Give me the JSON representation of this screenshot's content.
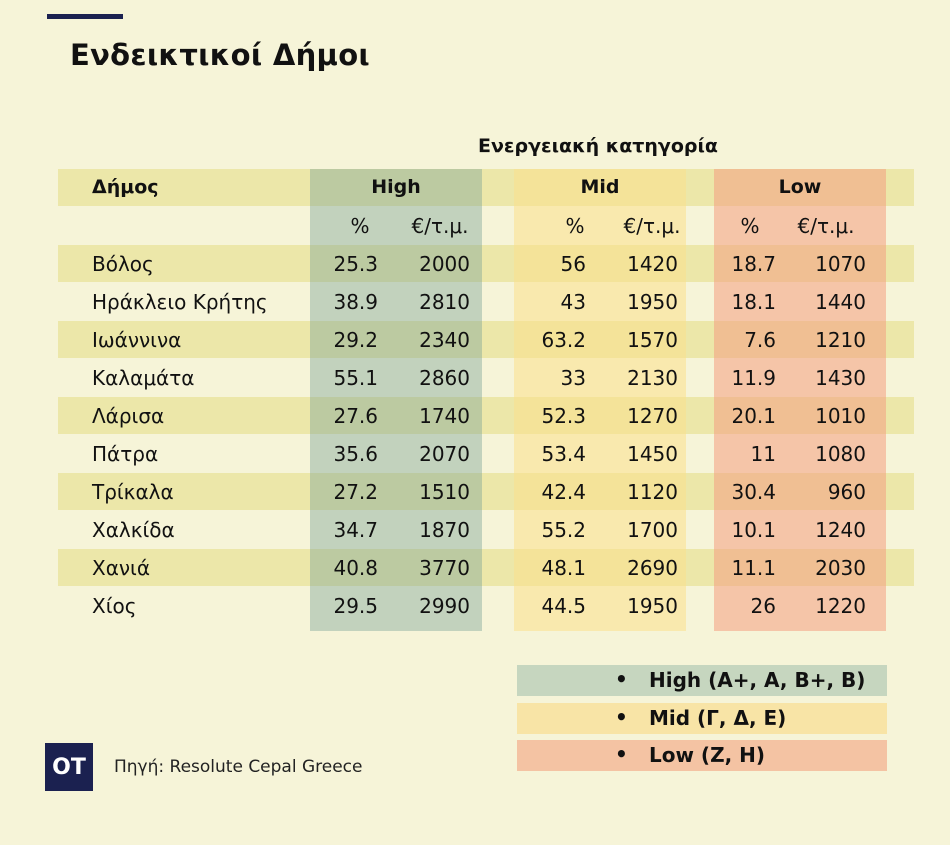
{
  "page": {
    "title": "Ενδεικτικοί Δήμοι",
    "group_header": "Ενεργειακή κατηγορία",
    "source": "Πηγή: Resolute Cepal Greece",
    "logo": "OT"
  },
  "colors": {
    "background": "#f6f4d8",
    "row_band": "#ece7a9",
    "high": "#c6d6bf",
    "mid": "#f8e4a6",
    "low": "#f4c3a3",
    "brand": "#1b2150"
  },
  "table": {
    "columns": {
      "municipality": "Δήμος",
      "high": "High",
      "mid": "Mid",
      "low": "Low",
      "pct": "%",
      "price": "€/τ.μ."
    },
    "rows": [
      {
        "name": "Βόλος",
        "high_pct": "25.3",
        "high_price": "2000",
        "mid_pct": "56",
        "mid_price": "1420",
        "low_pct": "18.7",
        "low_price": "1070"
      },
      {
        "name": "Ηράκλειο Κρήτης",
        "high_pct": "38.9",
        "high_price": "2810",
        "mid_pct": "43",
        "mid_price": "1950",
        "low_pct": "18.1",
        "low_price": "1440"
      },
      {
        "name": "Ιωάννινα",
        "high_pct": "29.2",
        "high_price": "2340",
        "mid_pct": "63.2",
        "mid_price": "1570",
        "low_pct": "7.6",
        "low_price": "1210"
      },
      {
        "name": "Καλαμάτα",
        "high_pct": "55.1",
        "high_price": "2860",
        "mid_pct": "33",
        "mid_price": "2130",
        "low_pct": "11.9",
        "low_price": "1430"
      },
      {
        "name": "Λάρισα",
        "high_pct": "27.6",
        "high_price": "1740",
        "mid_pct": "52.3",
        "mid_price": "1270",
        "low_pct": "20.1",
        "low_price": "1010"
      },
      {
        "name": "Πάτρα",
        "high_pct": "35.6",
        "high_price": "2070",
        "mid_pct": "53.4",
        "mid_price": "1450",
        "low_pct": "11",
        "low_price": "1080"
      },
      {
        "name": "Τρίκαλα",
        "high_pct": "27.2",
        "high_price": "1510",
        "mid_pct": "42.4",
        "mid_price": "1120",
        "low_pct": "30.4",
        "low_price": "960"
      },
      {
        "name": "Χαλκίδα",
        "high_pct": "34.7",
        "high_price": "1870",
        "mid_pct": "55.2",
        "mid_price": "1700",
        "low_pct": "10.1",
        "low_price": "1240"
      },
      {
        "name": "Χανιά",
        "high_pct": "40.8",
        "high_price": "3770",
        "mid_pct": "48.1",
        "mid_price": "2690",
        "low_pct": "11.1",
        "low_price": "2030"
      },
      {
        "name": "Χίος",
        "high_pct": "29.5",
        "high_price": "2990",
        "mid_pct": "44.5",
        "mid_price": "1950",
        "low_pct": "26",
        "low_price": "1220"
      }
    ]
  },
  "legend": [
    {
      "bullet": "•",
      "label": "High (A+, A, B+, B)"
    },
    {
      "bullet": "•",
      "label": "Mid (Γ, Δ, Ε)"
    },
    {
      "bullet": "•",
      "label": "Low (Ζ, Η)"
    }
  ]
}
